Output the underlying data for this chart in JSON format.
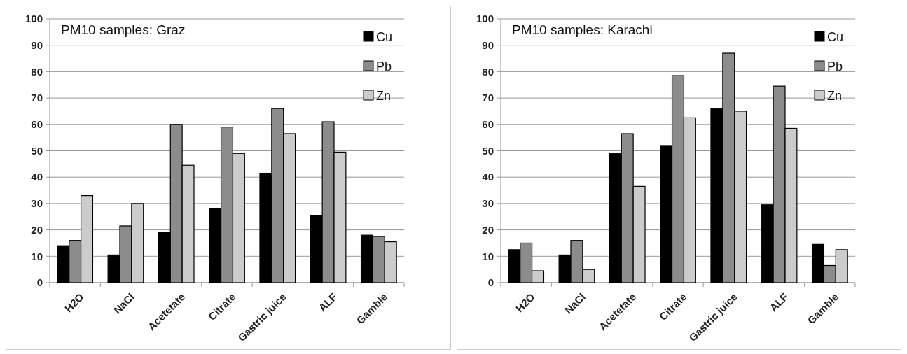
{
  "chart_data": [
    {
      "type": "bar",
      "title": "PM10 samples: Graz",
      "categories": [
        "H2O",
        "NaCl",
        "Acetetate",
        "Citrate",
        "Gastric juice",
        "ALF",
        "Gamble"
      ],
      "series": [
        {
          "name": "Cu",
          "color": "#000000",
          "values": [
            14,
            10.5,
            19,
            28,
            41.5,
            25.5,
            18
          ]
        },
        {
          "name": "Pb",
          "color": "#8c8c8c",
          "values": [
            16,
            21.5,
            60,
            59,
            66,
            61,
            17.5
          ]
        },
        {
          "name": "Zn",
          "color": "#cccccc",
          "values": [
            33,
            30,
            44.5,
            49,
            56.5,
            49.5,
            15.5
          ]
        }
      ],
      "ylim": [
        0,
        100
      ],
      "yticks": [
        0,
        10,
        20,
        30,
        40,
        50,
        60,
        70,
        80,
        90,
        100
      ],
      "grid": "y",
      "legend": "top right"
    },
    {
      "type": "bar",
      "title": "PM10 samples: Karachi",
      "categories": [
        "H2O",
        "NaCl",
        "Acetetate",
        "Citrate",
        "Gastric juice",
        "ALF",
        "Gamble"
      ],
      "series": [
        {
          "name": "Cu",
          "color": "#000000",
          "values": [
            12.5,
            10.5,
            49,
            52,
            66,
            29.5,
            14.5
          ]
        },
        {
          "name": "Pb",
          "color": "#8c8c8c",
          "values": [
            15,
            16,
            56.5,
            78.5,
            87,
            74.5,
            6.5
          ]
        },
        {
          "name": "Zn",
          "color": "#cccccc",
          "values": [
            4.5,
            5,
            36.5,
            62.5,
            65,
            58.5,
            12.5
          ]
        }
      ],
      "ylim": [
        0,
        100
      ],
      "yticks": [
        0,
        10,
        20,
        30,
        40,
        50,
        60,
        70,
        80,
        90,
        100
      ],
      "grid": "y",
      "legend": "top right"
    }
  ]
}
